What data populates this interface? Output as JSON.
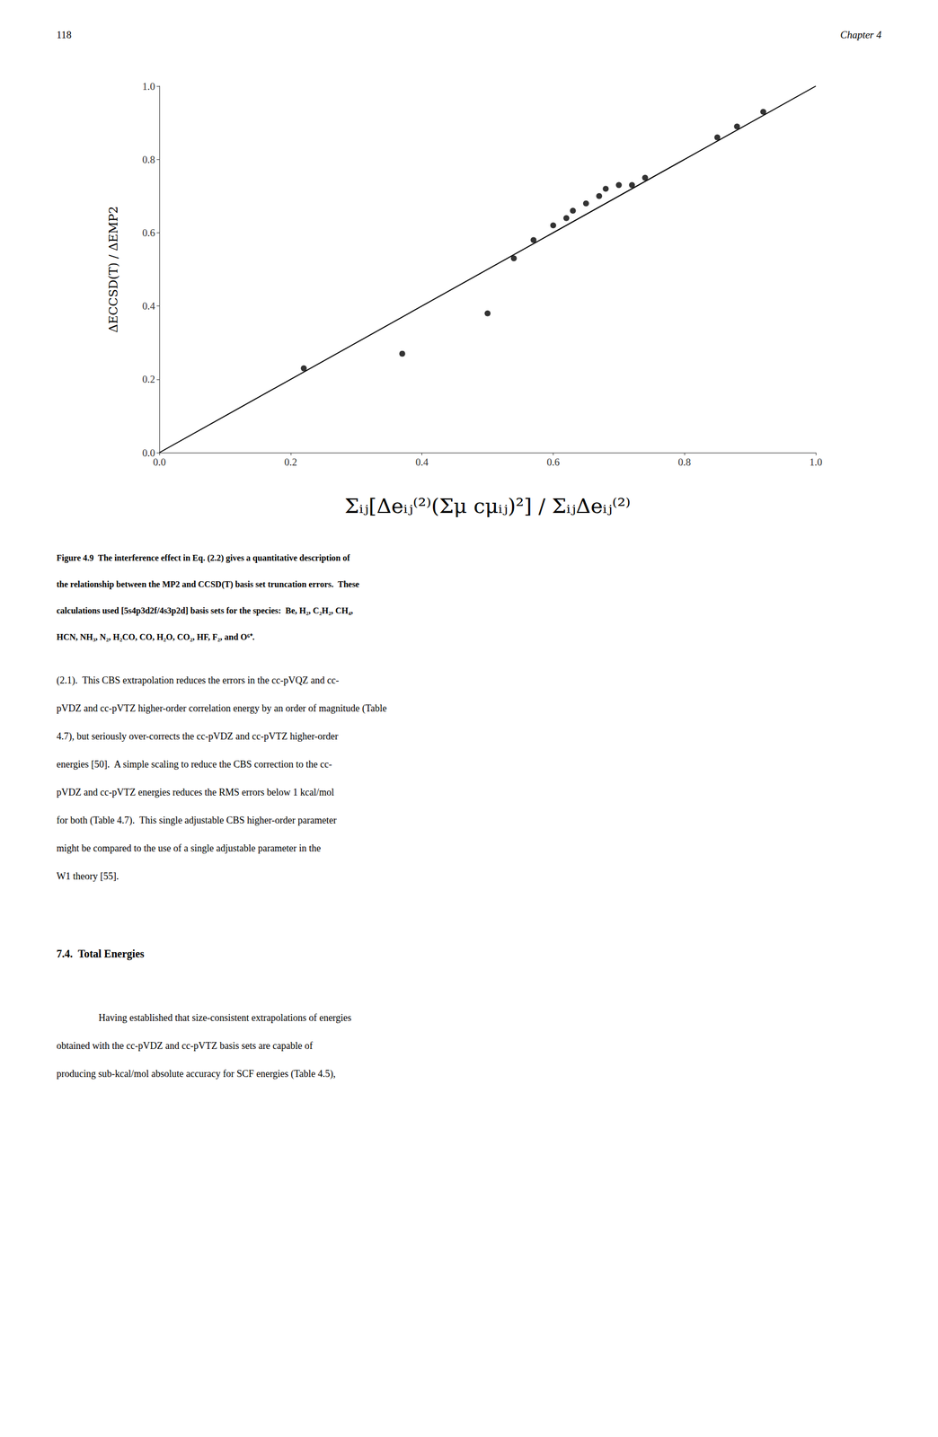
{
  "chart_data": {
    "type": "scatter",
    "xlabel": "Σᵢⱼ[Δeᵢⱼ⁽²⁾(Σμ cμᵢⱼ)²] / ΣᵢⱼΔeᵢⱼ⁽²⁾",
    "ylabel": "ΔECCSD(T) / ΔEMP2",
    "series": [
      {
        "type": "scatter",
        "color": "#000000",
        "marker": "circle",
        "x": [
          0.22,
          0.37,
          0.5,
          0.54,
          0.57,
          0.6,
          0.62,
          0.63,
          0.65,
          0.67,
          0.68,
          0.7,
          0.72,
          0.74,
          0.85,
          0.88,
          0.92
        ],
        "values": [
          0.23,
          0.27,
          0.38,
          0.53,
          0.58,
          0.62,
          0.64,
          0.66,
          0.68,
          0.7,
          0.72,
          0.73,
          0.73,
          0.75,
          0.86,
          0.89,
          0.93
        ]
      },
      {
        "type": "line",
        "color": "#000000",
        "line_style": "solid",
        "x": [
          0.0,
          1.0
        ],
        "values": [
          0.0,
          1.0
        ]
      }
    ],
    "xlim": [
      0.0,
      1.0
    ],
    "ylim": [
      0.0,
      1.0
    ],
    "xticks": [
      {
        "value": 0,
        "label": "0.0"
      },
      0.2,
      0.4,
      0.6,
      0.8,
      {
        "value": 1,
        "label": "1.0"
      }
    ],
    "yticks": [
      {
        "value": 0,
        "label": "0.0"
      },
      0.2,
      0.4,
      0.6,
      0.8,
      {
        "value": 1,
        "label": "1.0"
      }
    ],
    "grid": false,
    "annotations": [
      [
        "118",
        "Chapter 4"
      ],
      [
        "Figure 4.9  The interference effect in Eq. (2.2) gives a quantitative description of",
        "the relationship between the MP2 and CCSD(T) basis set truncation errors.  These",
        "calculations used [5s4p3d2f/4s3p2d] basis sets for the species:  Be, H₂, C₂H₂, CH₄,",
        "HCN, NH₃, N₂, H₂CO, CO, H₂O, CO₂, HF, F₂, and O⁶⁺."
      ],
      [
        "(2.1).  This CBS extrapolation reduces the errors in the cc-pVQZ and cc-",
        "pVDZ and cc-pVTZ higher-order correlation energy by an order of magnitude (Table",
        "4.7), but seriously over-corrects the cc-pVDZ and cc-pVTZ higher-order",
        "energies [50].  A simple scaling to reduce the CBS correction to the cc-",
        "pVDZ and cc-pVTZ energies reduces the RMS errors below 1 kcal/mol",
        "for both (Table 4.7).  This single adjustable CBS higher-order parameter",
        "might be compared to the use of a single adjustable parameter in the",
        "W1 theory [55]."
      ],
      [
        "7.4.  Total Energies"
      ],
      [
        "Having established that size-consistent extrapolations of energies",
        "obtained with the cc-pVDZ and cc-pVTZ basis sets are capable of",
        "producing sub-kcal/mol absolute accuracy for SCF energies (Table 4.5),"
      ]
    ]
  }
}
